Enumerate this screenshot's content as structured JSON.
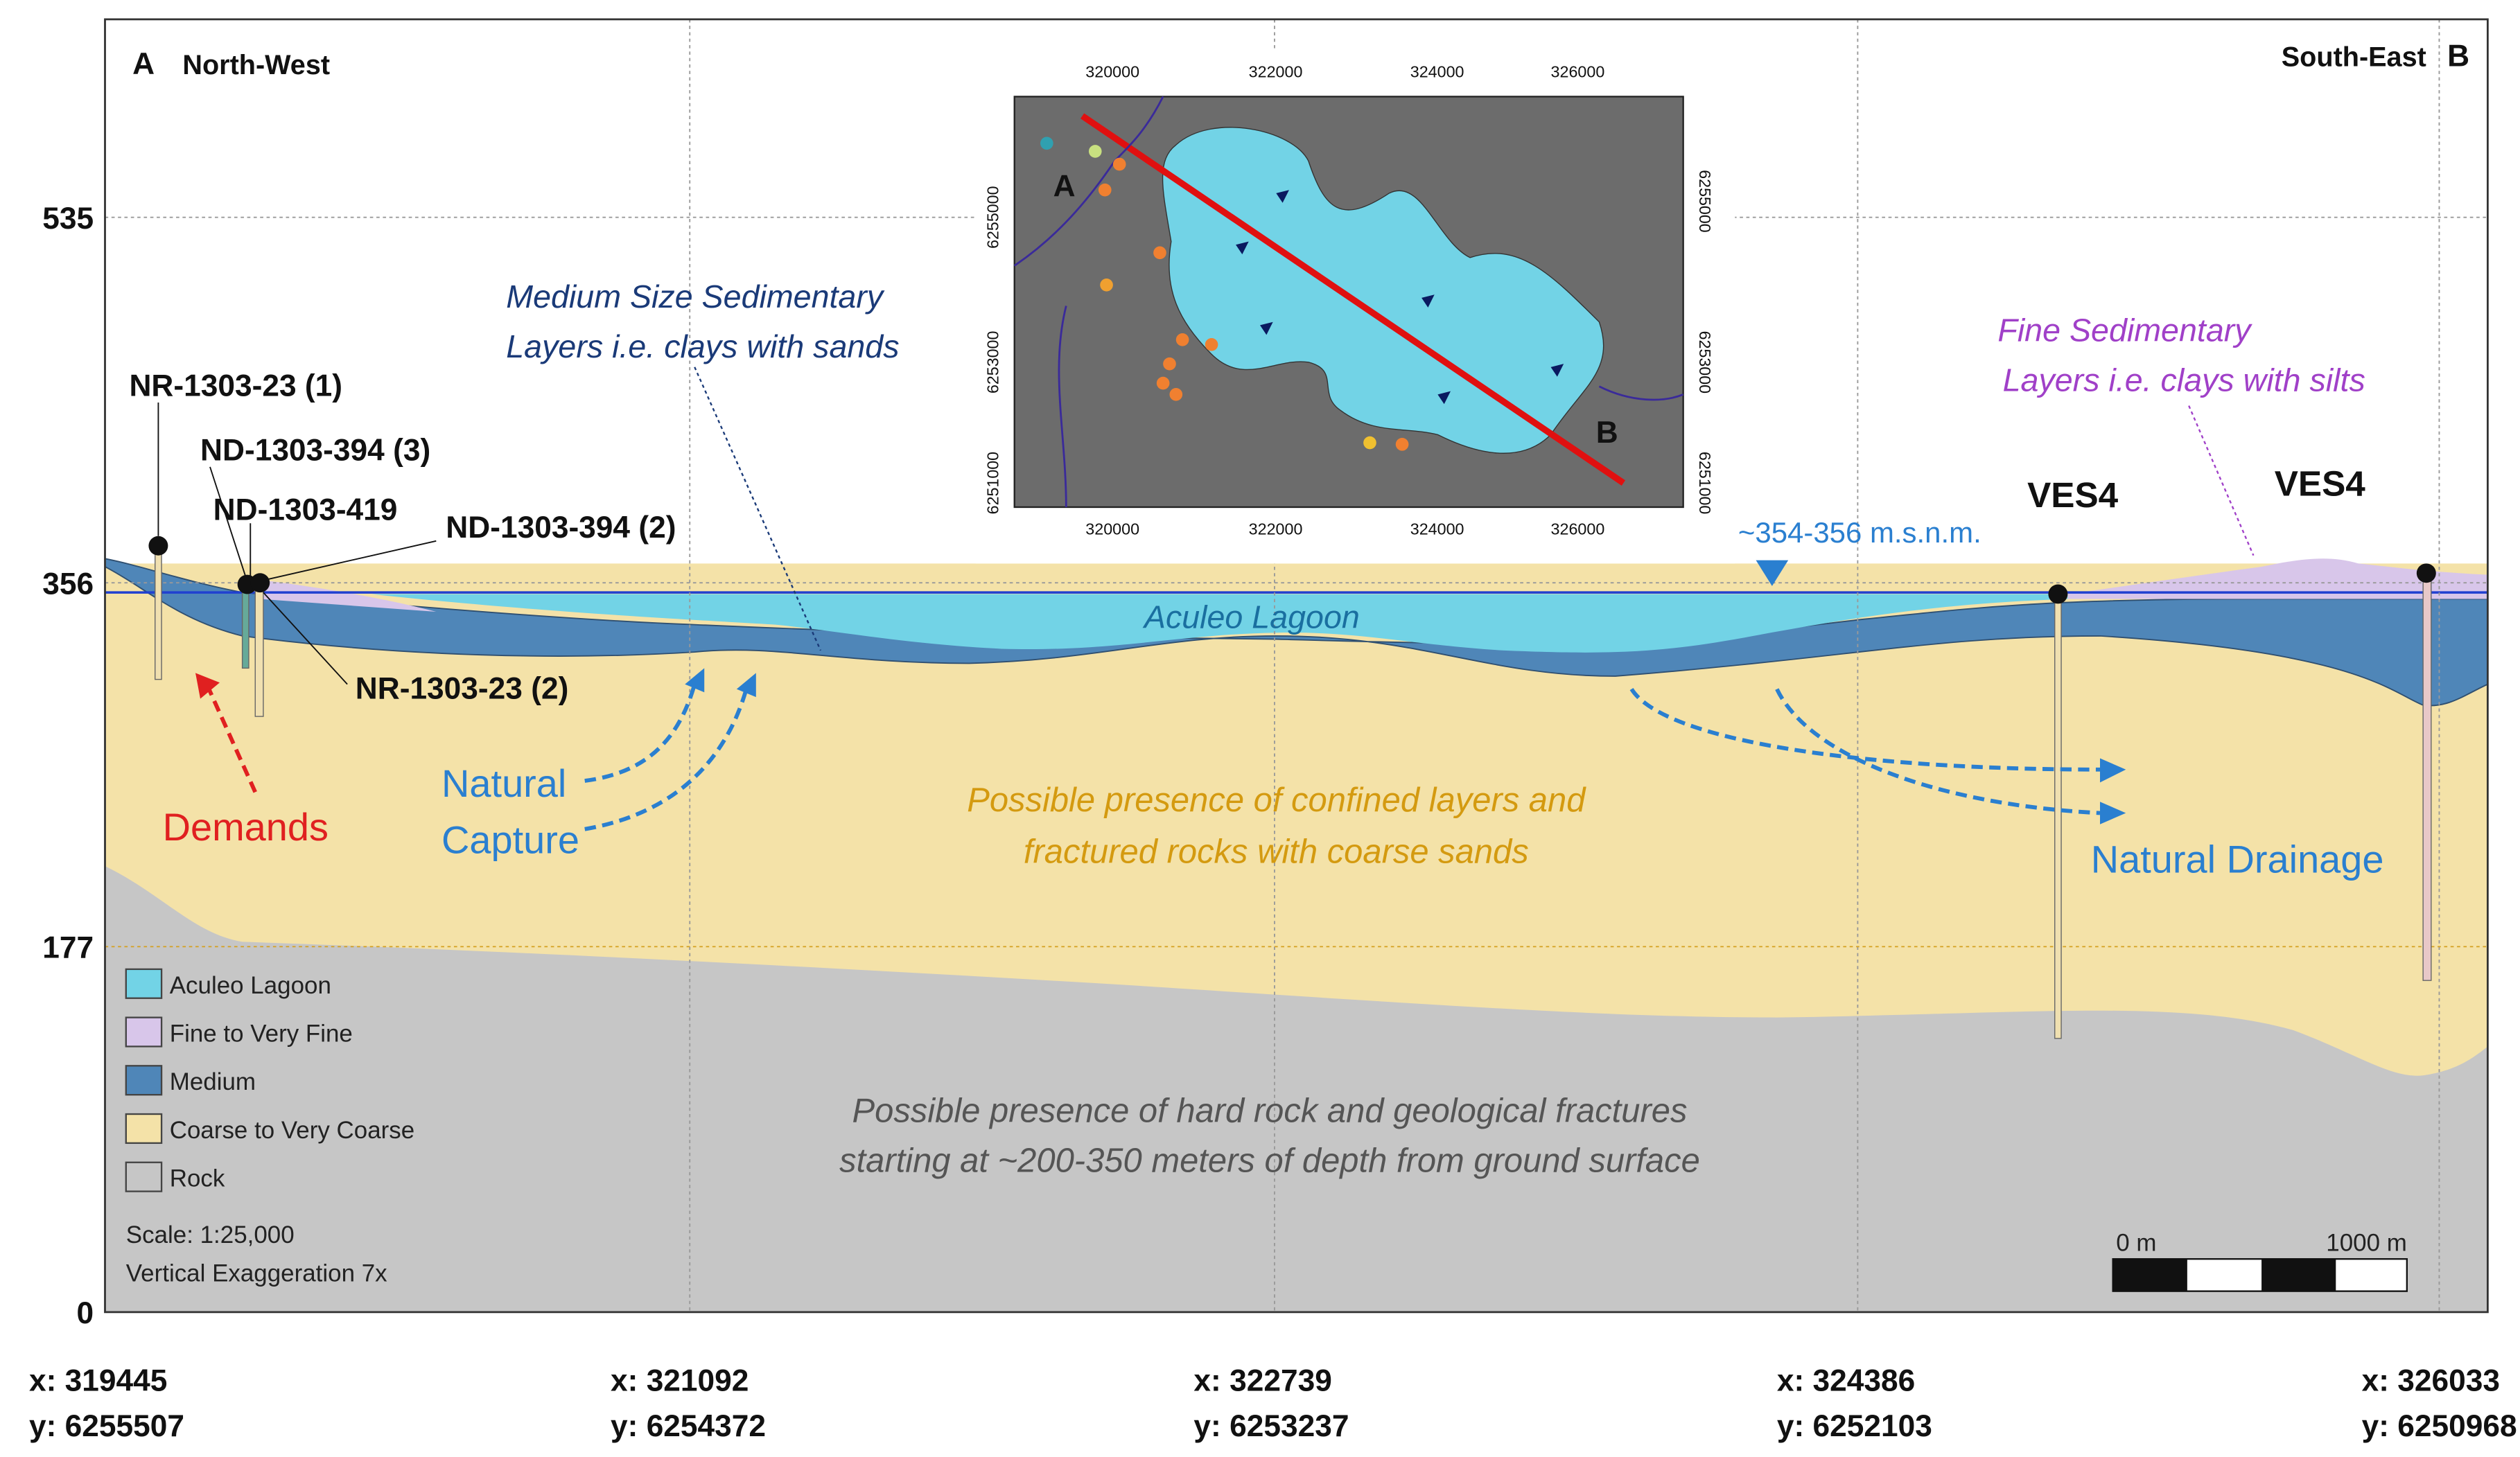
{
  "header": {
    "left_letter": "A",
    "left": "North-West",
    "right": "South-East",
    "right_letter": "B"
  },
  "y_axis": {
    "ticks": [
      535,
      356,
      177,
      0
    ]
  },
  "x_axis": {
    "labels": [
      {
        "x": "x: 319445",
        "y": "y: 6255507"
      },
      {
        "x": "x: 321092",
        "y": "y: 6254372"
      },
      {
        "x": "x: 322739",
        "y": "y: 6253237"
      },
      {
        "x": "x: 324386",
        "y": "y: 6252103"
      },
      {
        "x": "x: 326033",
        "y": "y: 6250968"
      }
    ]
  },
  "wells": [
    "NR-1303-23 (1)",
    "ND-1303-394 (3)",
    "ND-1303-419",
    "ND-1303-394 (2)",
    "NR-1303-23 (2)",
    "VES4",
    "VES4"
  ],
  "annotations": {
    "medium": [
      "Medium Size Sedimentary",
      "Layers i.e. clays with sands"
    ],
    "fine": [
      "Fine Sedimentary",
      "Layers i.e. clays with silts"
    ],
    "water_level": "~354-356 m.s.n.m.",
    "lagoon": "Aculeo Lagoon",
    "demands": "Demands",
    "capture": [
      "Natural",
      "Capture"
    ],
    "confined": [
      "Possible presence of confined layers and",
      "fractured rocks with coarse sands"
    ],
    "drainage": "Natural Drainage",
    "rock": [
      "Possible presence of hard rock and geological fractures",
      "starting at ~200-350 meters of depth from ground surface"
    ]
  },
  "legend": {
    "items": [
      "Aculeo Lagoon",
      "Fine to Very Fine",
      "Medium",
      "Coarse to Very Coarse",
      "Rock"
    ],
    "scale": "Scale: 1:25,000",
    "exaggeration": "Vertical Exaggeration 7x"
  },
  "inset": {
    "x_ticks": [
      "320000",
      "322000",
      "324000",
      "326000"
    ],
    "y_ticks": [
      "6255000",
      "6253000",
      "6251000"
    ],
    "points": [
      "A",
      "B"
    ]
  },
  "scale_bar": [
    "0 m",
    "1000 m"
  ]
}
